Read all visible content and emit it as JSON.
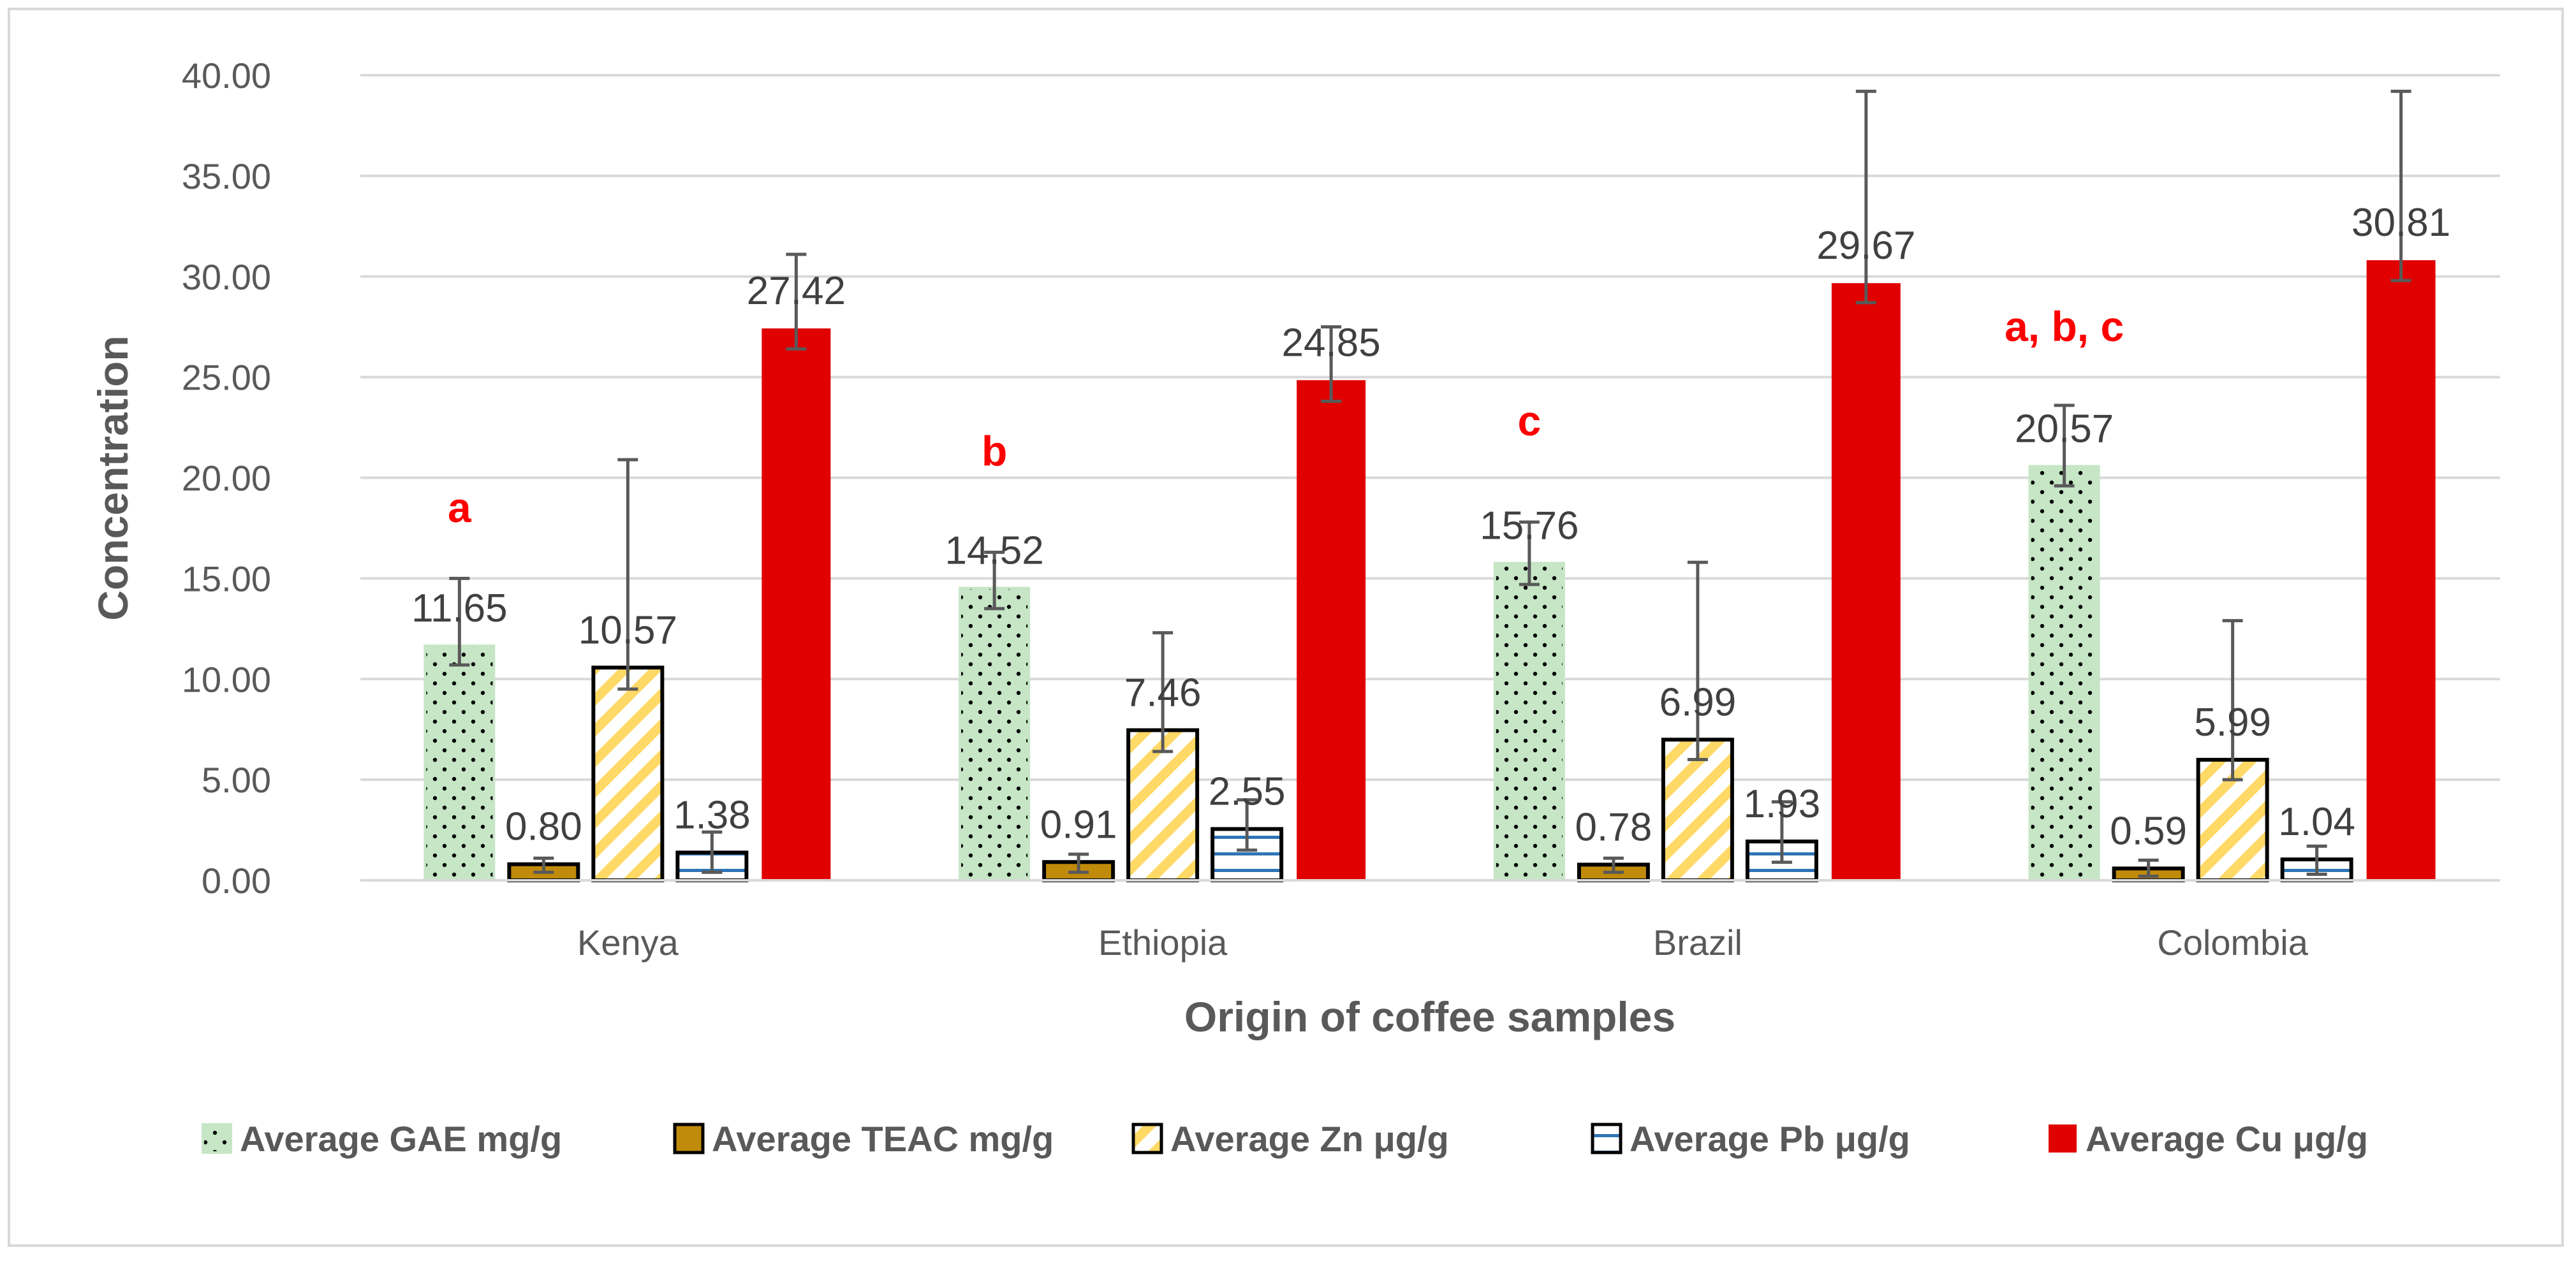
{
  "chart_data": {
    "type": "bar",
    "title": "",
    "xlabel": "Origin of coffee samples",
    "ylabel": "Concentration",
    "ylim": [
      0,
      40
    ],
    "yticks": [
      "0.00",
      "5.00",
      "10.00",
      "15.00",
      "20.00",
      "25.00",
      "30.00",
      "35.00",
      "40.00"
    ],
    "grid": true,
    "legend_position": "bottom",
    "categories": [
      "Kenya",
      "Ethiopia",
      "Brazil",
      "Colombia"
    ],
    "series": [
      {
        "name": "Average GAE mg/g",
        "color": "#c6e6c6",
        "pattern": "dots",
        "values": [
          11.65,
          14.52,
          15.76,
          20.57
        ],
        "labels": [
          "11.65",
          "14.52",
          "15.76",
          "20.57"
        ],
        "error": [
          {
            "low": 10.7,
            "high": 15.0
          },
          {
            "low": 13.5,
            "high": 16.3
          },
          {
            "low": 14.7,
            "high": 17.8
          },
          {
            "low": 19.6,
            "high": 23.6
          }
        ]
      },
      {
        "name": "Average TEAC mg/g",
        "color": "#c08a0a",
        "pattern": "solid-outlined",
        "values": [
          0.8,
          0.91,
          0.78,
          0.59
        ],
        "labels": [
          "0.80",
          "0.91",
          "0.78",
          "0.59"
        ],
        "error": [
          {
            "low": 0.4,
            "high": 1.1
          },
          {
            "low": 0.4,
            "high": 1.3
          },
          {
            "low": 0.4,
            "high": 1.1
          },
          {
            "low": 0.2,
            "high": 1.0
          }
        ]
      },
      {
        "name": "Average Zn μg/g",
        "color": "#ffd966",
        "pattern": "diagonal",
        "values": [
          10.57,
          7.46,
          6.99,
          5.99
        ],
        "labels": [
          "10.57",
          "7.46",
          "6.99",
          "5.99"
        ],
        "error": [
          {
            "low": 9.5,
            "high": 20.9
          },
          {
            "low": 6.4,
            "high": 12.3
          },
          {
            "low": 6.0,
            "high": 15.8
          },
          {
            "low": 5.0,
            "high": 12.9
          }
        ]
      },
      {
        "name": "Average Pb μg/g",
        "color": "#2e75b6",
        "pattern": "horizontal",
        "values": [
          1.38,
          2.55,
          1.93,
          1.04
        ],
        "labels": [
          "1.38",
          "2.55",
          "1.93",
          "1.04"
        ],
        "error": [
          {
            "low": 0.4,
            "high": 2.4
          },
          {
            "low": 1.5,
            "high": 4.0
          },
          {
            "low": 0.9,
            "high": 3.9
          },
          {
            "low": 0.3,
            "high": 1.7
          }
        ]
      },
      {
        "name": "Average Cu μg/g",
        "color": "#e00000",
        "pattern": "solid",
        "values": [
          27.42,
          24.85,
          29.67,
          30.81
        ],
        "labels": [
          "27.42",
          "24.85",
          "29.67",
          "30.81"
        ],
        "error": [
          {
            "low": 26.4,
            "high": 31.1
          },
          {
            "low": 23.8,
            "high": 27.5
          },
          {
            "low": 28.7,
            "high": 39.2
          },
          {
            "low": 29.8,
            "high": 39.2
          }
        ]
      }
    ],
    "annotations": [
      {
        "text": "a",
        "category": 0,
        "series": 0,
        "value": 17.8
      },
      {
        "text": "b",
        "category": 1,
        "series": 0,
        "value": 20.6
      },
      {
        "text": "c",
        "category": 2,
        "series": 0,
        "value": 22.1
      },
      {
        "text": "a, b, c",
        "category": 3,
        "series": 0,
        "value": 26.8
      }
    ]
  }
}
